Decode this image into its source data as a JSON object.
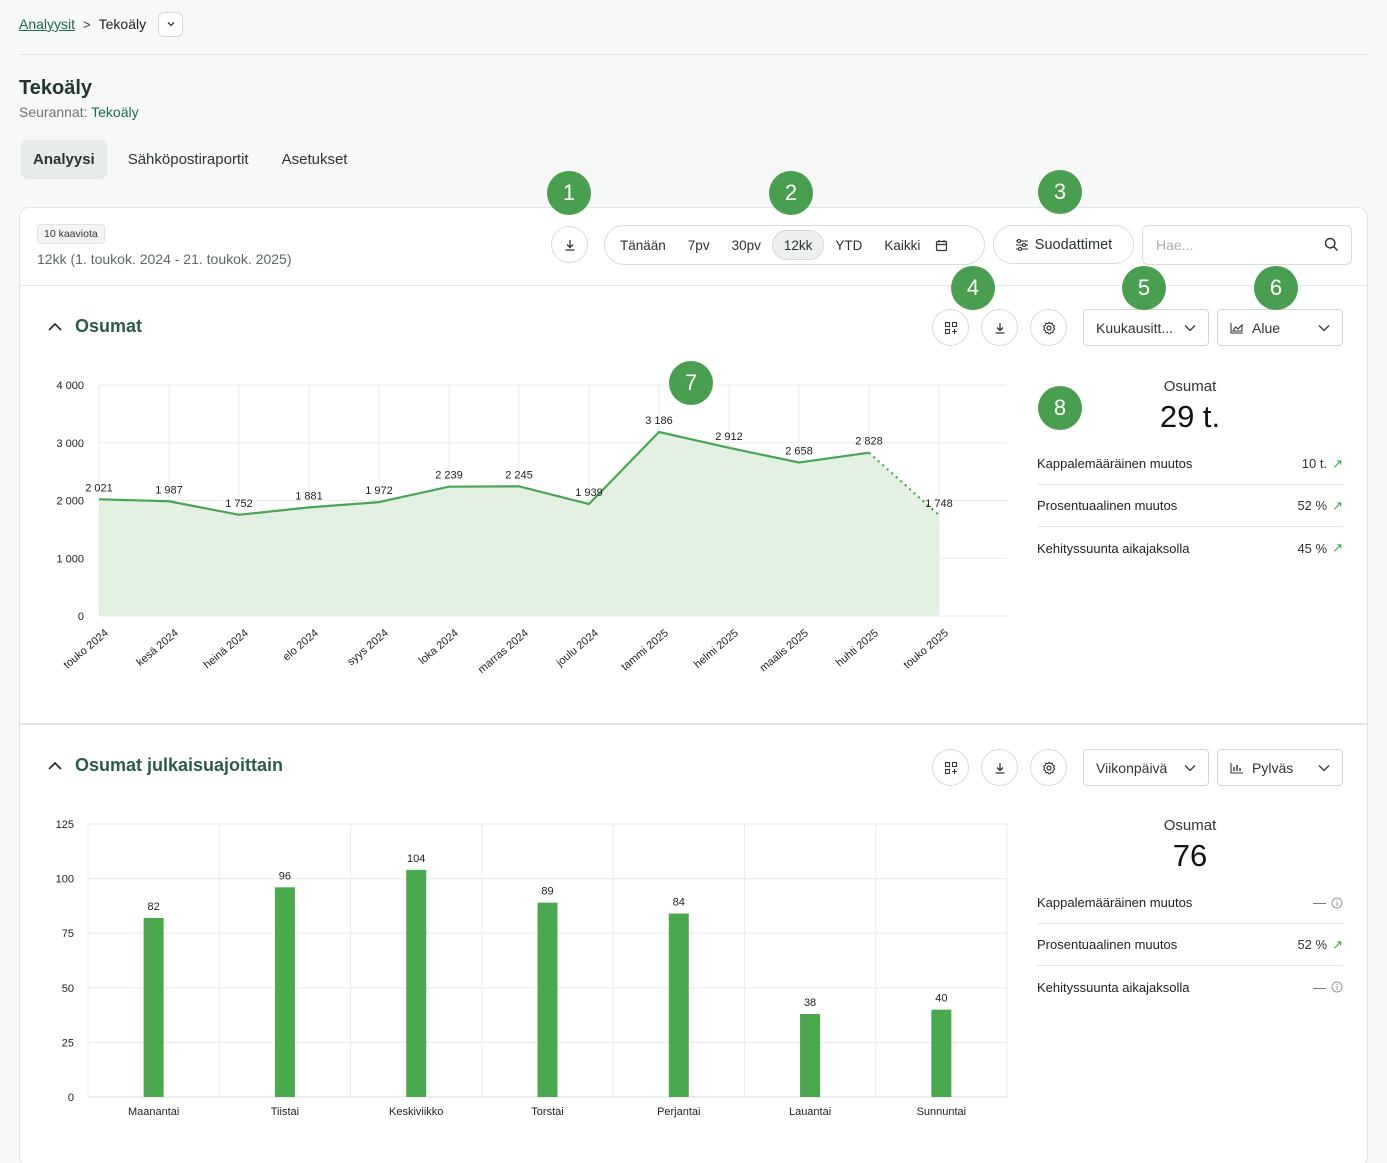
{
  "breadcrumb": {
    "parent": "Analyysit",
    "current": "Tekoäly"
  },
  "page": {
    "title": "Tekoäly",
    "subtitle_prefix": "Seurannat:",
    "subtitle_link": "Tekoäly"
  },
  "tabs": [
    {
      "label": "Analyysi"
    },
    {
      "label": "Sähköpostiraportit"
    },
    {
      "label": "Asetukset"
    }
  ],
  "panel": {
    "chip": "10 kaaviota",
    "range": "12kk (1. toukok. 2024 - 21. toukok. 2025)",
    "date_options": [
      "Tänään",
      "7pv",
      "30pv",
      "12kk",
      "YTD",
      "Kaikki"
    ],
    "date_selected": "12kk",
    "filters_label": "Suodattimet",
    "search_placeholder": "Hae..."
  },
  "badges": [
    "1",
    "2",
    "3",
    "4",
    "5",
    "6",
    "7",
    "8"
  ],
  "section1": {
    "title": "Osumat",
    "interval": "Kuukausitt...",
    "chart_type": "Alue",
    "stats": {
      "title": "Osumat",
      "value": "29 t.",
      "rows": [
        {
          "label": "Kappalemääräinen muutos",
          "value": "10 t."
        },
        {
          "label": "Prosentuaalinen muutos",
          "value": "52 %"
        },
        {
          "label": "Kehityssuunta aikajaksolla",
          "value": "45 %"
        }
      ]
    }
  },
  "section2": {
    "title": "Osumat julkaisuajoittain",
    "interval": "Viikonpäivä",
    "chart_type": "Pylväs",
    "stats": {
      "title": "Osumat",
      "value": "76",
      "rows": [
        {
          "label": "Kappalemääräinen muutos",
          "value": "—"
        },
        {
          "label": "Prosentuaalinen muutos",
          "value": "52 %"
        },
        {
          "label": "Kehityssuunta aikajaksolla",
          "value": "—"
        }
      ]
    }
  },
  "chart_data": [
    {
      "type": "area",
      "title": "Osumat",
      "categories": [
        "touko 2024",
        "kesä 2024",
        "heinä 2024",
        "elo 2024",
        "syys 2024",
        "loka 2024",
        "marras 2024",
        "joulu 2024",
        "tammi 2025",
        "helmi 2025",
        "maalis 2025",
        "huhti 2025",
        "touko 2025"
      ],
      "values": [
        2021,
        1987,
        1752,
        1881,
        1972,
        2239,
        2245,
        1939,
        3186,
        2912,
        2658,
        2828,
        1748
      ],
      "value_labels": [
        "2 021",
        "1 987",
        "1 752",
        "1 881",
        "1 972",
        "2 239",
        "2 245",
        "1 939",
        "3 186",
        "2 912",
        "2 658",
        "2 828",
        "1 748"
      ],
      "yticks": [
        "0",
        "1 000",
        "2 000",
        "3 000",
        "4 000"
      ],
      "ylim": [
        0,
        4000
      ],
      "last_segment_dotted": true,
      "grid": true,
      "color": "#4aa553",
      "fill": "#e3f1e3"
    },
    {
      "type": "bar",
      "title": "Osumat julkaisuajoittain",
      "categories": [
        "Maanantai",
        "Tiistai",
        "Keskiviikko",
        "Torstai",
        "Perjantai",
        "Lauantai",
        "Sunnuntai"
      ],
      "values": [
        82,
        96,
        104,
        89,
        84,
        38,
        40
      ],
      "yticks": [
        "0",
        "25",
        "50",
        "75",
        "100",
        "125"
      ],
      "ylim": [
        0,
        125
      ],
      "grid": true,
      "color": "#4aa84f"
    }
  ]
}
